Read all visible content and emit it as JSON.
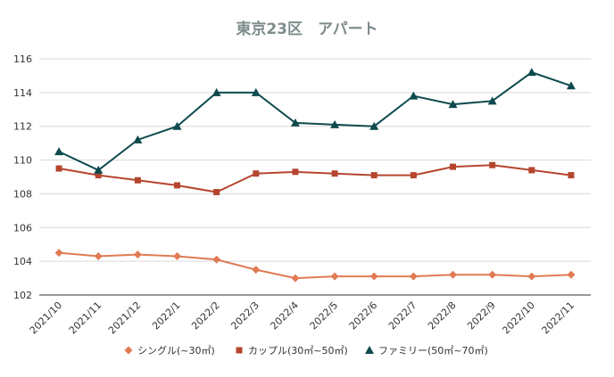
{
  "chart_data": {
    "type": "line",
    "title": "東京23区　アパート",
    "xlabel": "",
    "ylabel": "",
    "categories": [
      "2021/10",
      "2021/11",
      "2021/12",
      "2022/1",
      "2022/2",
      "2022/3",
      "2022/4",
      "2022/5",
      "2022/6",
      "2022/7",
      "2022/8",
      "2022/9",
      "2022/10",
      "2022/11"
    ],
    "ylim": [
      102,
      116
    ],
    "yticks": [
      102,
      104,
      106,
      108,
      110,
      112,
      114,
      116
    ],
    "grid": true,
    "legend_position": "bottom",
    "series": [
      {
        "name": "シングル(~30㎡)",
        "color": "#e07b53",
        "marker": "diamond",
        "values": [
          104.5,
          104.3,
          104.4,
          104.3,
          104.1,
          103.5,
          103.0,
          103.1,
          103.1,
          103.1,
          103.2,
          103.2,
          103.1,
          103.2
        ]
      },
      {
        "name": "カップル(30㎡~50㎡)",
        "color": "#b5452e",
        "marker": "square",
        "values": [
          109.5,
          109.1,
          108.8,
          108.5,
          108.1,
          109.2,
          109.3,
          109.2,
          109.1,
          109.1,
          109.6,
          109.7,
          109.4,
          109.1
        ]
      },
      {
        "name": "ファミリー(50㎡~70㎡)",
        "color": "#0e4a4e",
        "marker": "triangle",
        "values": [
          110.5,
          109.4,
          111.2,
          112.0,
          114.0,
          114.0,
          112.2,
          112.1,
          112.0,
          113.8,
          113.3,
          113.5,
          115.2,
          114.4
        ]
      }
    ]
  }
}
